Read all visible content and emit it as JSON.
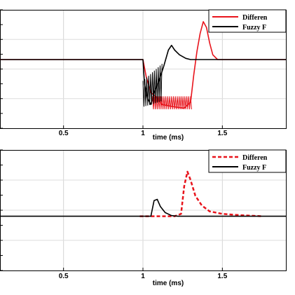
{
  "chart_data": [
    {
      "type": "line",
      "xlabel": "time (ms)",
      "ylabel": "",
      "xlim": [
        0.1,
        1.9
      ],
      "ylim": [
        0,
        1
      ],
      "x_ticks": [
        0.5,
        1,
        1.5
      ],
      "x_tick_labels": [
        "0.5",
        "1",
        "1.5"
      ],
      "grid": true,
      "legend_position": "top-right",
      "series": [
        {
          "name": "Differen",
          "color": "#e8141c",
          "style": "solid",
          "points": [
            [
              0.1,
              0.58
            ],
            [
              1.0,
              0.58
            ],
            [
              1.02,
              0.44
            ],
            [
              1.05,
              0.3
            ],
            [
              1.08,
              0.27
            ],
            [
              1.12,
              0.2
            ],
            [
              1.2,
              0.18
            ],
            [
              1.26,
              0.17
            ],
            [
              1.3,
              0.22
            ],
            [
              1.32,
              0.45
            ],
            [
              1.34,
              0.65
            ],
            [
              1.36,
              0.8
            ],
            [
              1.38,
              0.9
            ],
            [
              1.4,
              0.85
            ],
            [
              1.42,
              0.72
            ],
            [
              1.44,
              0.62
            ],
            [
              1.47,
              0.58
            ],
            [
              1.55,
              0.58
            ],
            [
              1.9,
              0.58
            ]
          ]
        },
        {
          "name": "Fuzzy F",
          "color": "#000000",
          "style": "solid",
          "points": [
            [
              0.1,
              0.58
            ],
            [
              1.0,
              0.58
            ],
            [
              1.01,
              0.37
            ],
            [
              1.03,
              0.25
            ],
            [
              1.05,
              0.2
            ],
            [
              1.07,
              0.3
            ],
            [
              1.1,
              0.4
            ],
            [
              1.13,
              0.52
            ],
            [
              1.16,
              0.66
            ],
            [
              1.18,
              0.7
            ],
            [
              1.2,
              0.66
            ],
            [
              1.23,
              0.62
            ],
            [
              1.27,
              0.59
            ],
            [
              1.3,
              0.58
            ],
            [
              1.9,
              0.58
            ]
          ]
        }
      ]
    },
    {
      "type": "line",
      "xlabel": "time (ms)",
      "ylabel": "",
      "xlim": [
        0.1,
        1.9
      ],
      "ylim": [
        0,
        1
      ],
      "x_ticks": [
        0.5,
        1,
        1.5
      ],
      "x_tick_labels": [
        "0.5",
        "1",
        "1.5"
      ],
      "grid": true,
      "legend_position": "top-right",
      "series": [
        {
          "name": "Differen",
          "color": "#e8141c",
          "style": "dashed",
          "points": [
            [
              0.98,
              0.45
            ],
            [
              1.1,
              0.45
            ],
            [
              1.2,
              0.45
            ],
            [
              1.24,
              0.47
            ],
            [
              1.26,
              0.7
            ],
            [
              1.28,
              0.82
            ],
            [
              1.3,
              0.75
            ],
            [
              1.33,
              0.62
            ],
            [
              1.37,
              0.54
            ],
            [
              1.42,
              0.49
            ],
            [
              1.5,
              0.47
            ],
            [
              1.6,
              0.46
            ],
            [
              1.75,
              0.45
            ]
          ]
        },
        {
          "name": "Fuzzy F",
          "color": "#000000",
          "style": "solid",
          "points": [
            [
              0.1,
              0.45
            ],
            [
              1.05,
              0.45
            ],
            [
              1.07,
              0.58
            ],
            [
              1.09,
              0.59
            ],
            [
              1.11,
              0.53
            ],
            [
              1.14,
              0.48
            ],
            [
              1.18,
              0.455
            ],
            [
              1.22,
              0.45
            ],
            [
              1.9,
              0.45
            ]
          ]
        }
      ]
    }
  ]
}
